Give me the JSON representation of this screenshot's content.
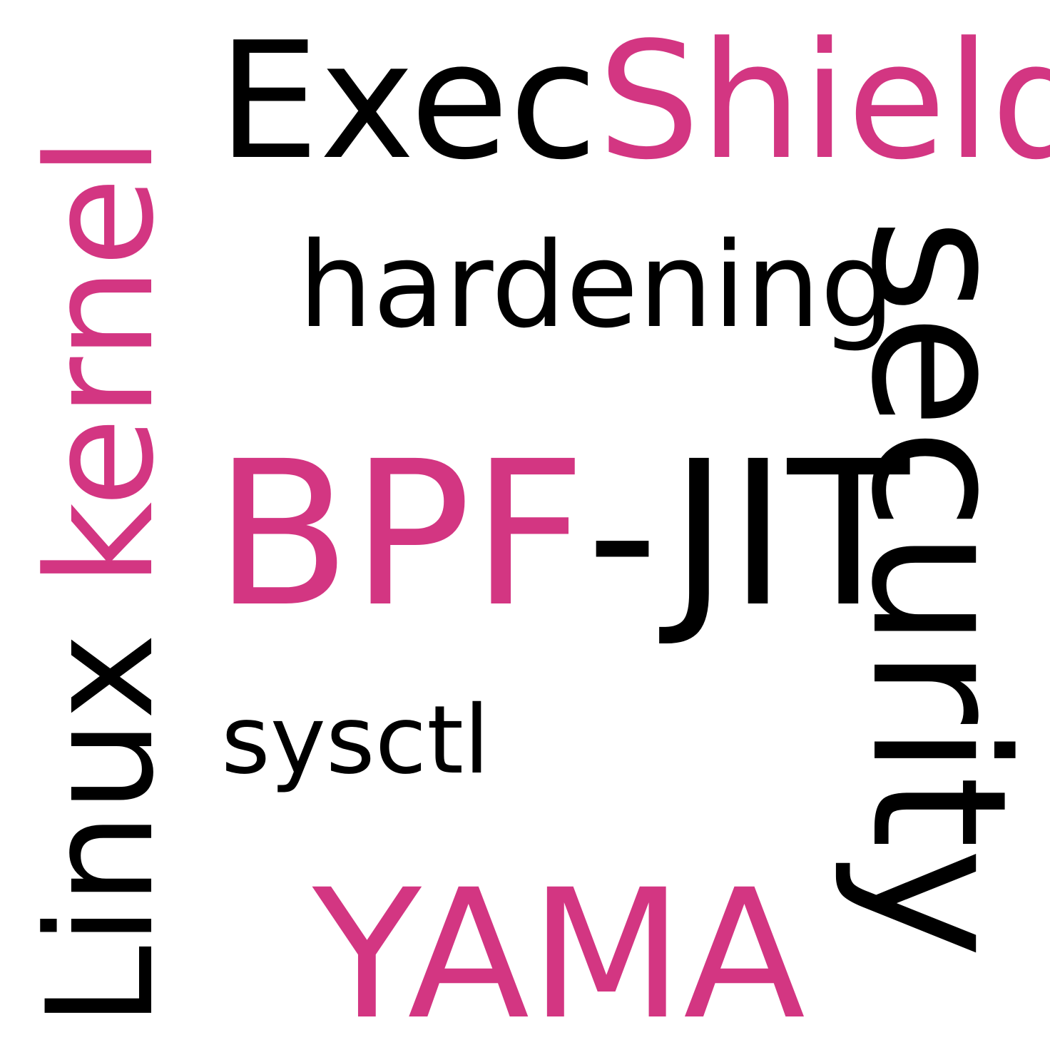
{
  "words": {
    "linux": "Linux",
    "kernel": "kernel",
    "exec": "Exec",
    "shield": "Shield",
    "hardening": "hardening",
    "security": "security",
    "bpf": "BPF",
    "jit": "-JIT",
    "sysctl": "sysctl",
    "yama": "YAMA"
  },
  "colors": {
    "black": "#000000",
    "accent": "#d33682",
    "background": "#ffffff"
  }
}
